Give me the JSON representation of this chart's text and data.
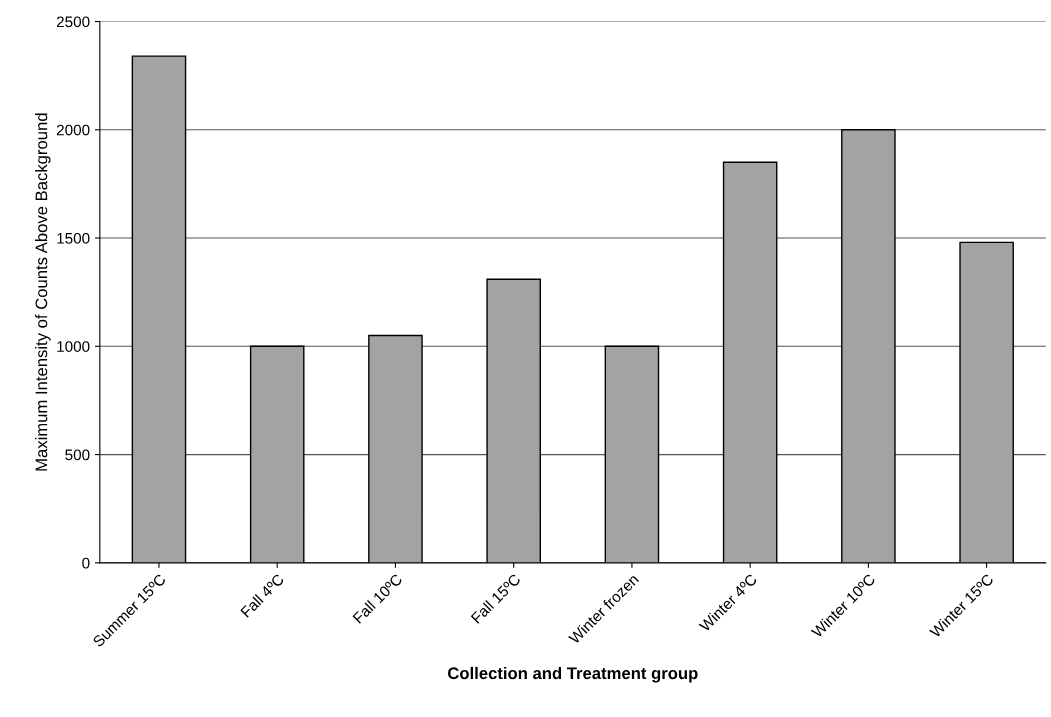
{
  "chart_data": {
    "type": "bar",
    "xlabel": "Collection and Treatment group",
    "ylabel": "Maximum Intensity of Counts Above Background",
    "categories": [
      "Summer 15ºC",
      "Fall 4ºC",
      "Fall 10ºC",
      "Fall 15ºC",
      "Winter frozen",
      "Winter 4ºC",
      "Winter 10ºC",
      "Winter 15ºC"
    ],
    "values": [
      2340,
      1000,
      1050,
      1310,
      1000,
      1850,
      2000,
      1480
    ],
    "color": "#a3a3a3",
    "ylim": [
      0,
      2500
    ],
    "yticks": [
      0,
      500,
      1000,
      1500,
      2000,
      2500
    ],
    "grid": "y"
  }
}
